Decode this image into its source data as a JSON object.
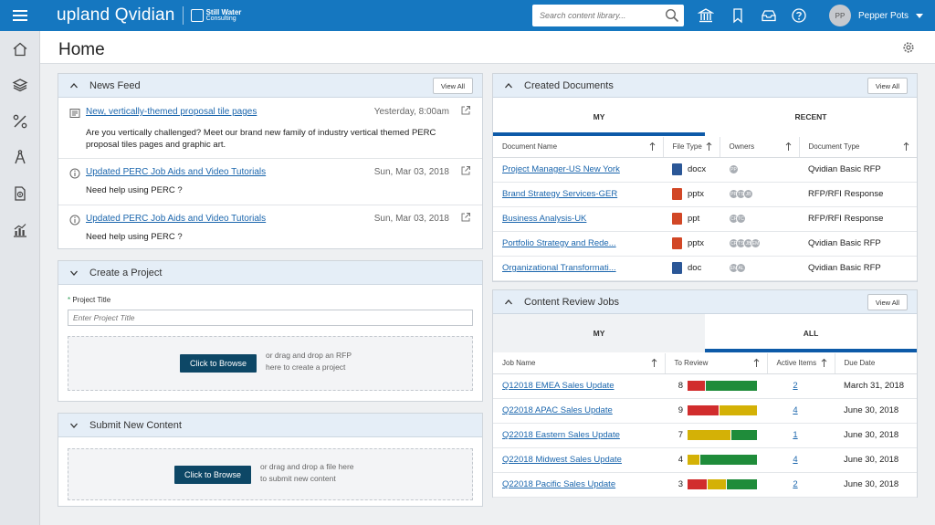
{
  "topbar": {
    "brand_name": "upland Qvidian",
    "partner_line1": "Still Water",
    "partner_line2": "Consulting",
    "search_placeholder": "Search content library...",
    "user_initials": "PP",
    "user_name": "Pepper Pots"
  },
  "page": {
    "title": "Home"
  },
  "news_feed": {
    "title": "News Feed",
    "view_all_label": "View All",
    "items": [
      {
        "title": "New, vertically-themed proposal tile pages",
        "date": "Yesterday, 8:00am",
        "body": "Are you vertically challenged? Meet our brand new family of industry vertical themed PERC proposal tiles pages and graphic art."
      },
      {
        "title": "Updated PERC Job Aids and Video Tutorials",
        "date": "Sun, Mar 03, 2018",
        "body": "Need help using PERC ?"
      },
      {
        "title": "Updated PERC Job Aids and Video Tutorials",
        "date": "Sun, Mar 03, 2018",
        "body": "Need help using PERC ?"
      }
    ]
  },
  "create_project": {
    "title": "Create a Project",
    "required_mark": "*",
    "field_label": "Project Title",
    "field_placeholder": "Enter Project Title",
    "browse_label": "Click to Browse",
    "hint_line1": "or drag and drop an RFP",
    "hint_line2": "here to create a project"
  },
  "submit_content": {
    "title": "Submit New Content",
    "browse_label": "Click to Browse",
    "hint_line1": "or drag and drop a file here",
    "hint_line2": "to submit new content"
  },
  "created_documents": {
    "title": "Created Documents",
    "view_all_label": "View All",
    "tabs": [
      "MY",
      "RECENT"
    ],
    "columns": [
      "Document Name",
      "File Type",
      "Owners",
      "Document Type"
    ],
    "rows": [
      {
        "name": "Project Manager-US New York",
        "file_type": "docx",
        "icon_color": "#2b5797",
        "owners": [
          "PP"
        ],
        "doc_type": "Qvidian Basic RFP"
      },
      {
        "name": "Brand Strategy Services-GER",
        "file_type": "pptx",
        "icon_color": "#d24726",
        "owners": [
          "PP",
          "TS",
          "JB"
        ],
        "doc_type": "RFP/RFI Response"
      },
      {
        "name": "Business Analysis-UK",
        "file_type": "ppt",
        "icon_color": "#d24726",
        "owners": [
          "CF",
          "TC"
        ],
        "doc_type": "RFP/RFI Response"
      },
      {
        "name": "Portfolio Strategy and Rede...",
        "file_type": "pptx",
        "icon_color": "#d24726",
        "owners": [
          "CF",
          "TS",
          "JB",
          "EM"
        ],
        "doc_type": "Qvidian Basic RFP"
      },
      {
        "name": "Organizational Transformati...",
        "file_type": "doc",
        "icon_color": "#2b5797",
        "owners": [
          "EM",
          "AL"
        ],
        "doc_type": "Qvidian Basic RFP"
      }
    ]
  },
  "content_review": {
    "title": "Content Review Jobs",
    "view_all_label": "View All",
    "tabs": [
      "MY",
      "ALL"
    ],
    "columns": [
      "Job Name",
      "To Review",
      "Active Items",
      "Due Date"
    ],
    "rows": [
      {
        "name": "Q12018 EMEA Sales Update",
        "to_review": "8",
        "segments": [
          {
            "color": "#d12d2d",
            "pct": 25
          },
          {
            "color": "#1f8c3a",
            "pct": 75
          }
        ],
        "active": "2",
        "due": "March 31, 2018",
        "late": true
      },
      {
        "name": "Q22018 APAC Sales Update",
        "to_review": "9",
        "segments": [
          {
            "color": "#d12d2d",
            "pct": 45
          },
          {
            "color": "#d4b106",
            "pct": 55
          }
        ],
        "active": "4",
        "due": "June 30, 2018",
        "late": false
      },
      {
        "name": "Q22018 Eastern Sales Update",
        "to_review": "7",
        "segments": [
          {
            "color": "#d4b106",
            "pct": 62
          },
          {
            "color": "#1f8c3a",
            "pct": 38
          }
        ],
        "active": "1",
        "due": "June 30, 2018",
        "late": false
      },
      {
        "name": "Q22018 Midwest Sales Update",
        "to_review": "4",
        "segments": [
          {
            "color": "#d4b106",
            "pct": 17
          },
          {
            "color": "#1f8c3a",
            "pct": 83
          }
        ],
        "active": "4",
        "due": "June 30, 2018",
        "late": false
      },
      {
        "name": "Q22018 Pacific Sales Update",
        "to_review": "3",
        "segments": [
          {
            "color": "#d12d2d",
            "pct": 28
          },
          {
            "color": "#d4b106",
            "pct": 28
          },
          {
            "color": "#1f8c3a",
            "pct": 44
          }
        ],
        "active": "2",
        "due": "June 30, 2018",
        "late": false
      }
    ]
  },
  "colors": {
    "brand_blue": "#1577c0",
    "button_navy": "#0d4766",
    "link_blue": "#1b66ad",
    "late_red": "#d12d2d"
  },
  "icons": {
    "sidebar": [
      "home-icon",
      "layers-icon",
      "tools-icon",
      "compass-icon",
      "document-icon",
      "analytics-icon"
    ],
    "topbar": [
      "library-icon",
      "bookmark-icon",
      "inbox-icon",
      "help-icon"
    ]
  }
}
